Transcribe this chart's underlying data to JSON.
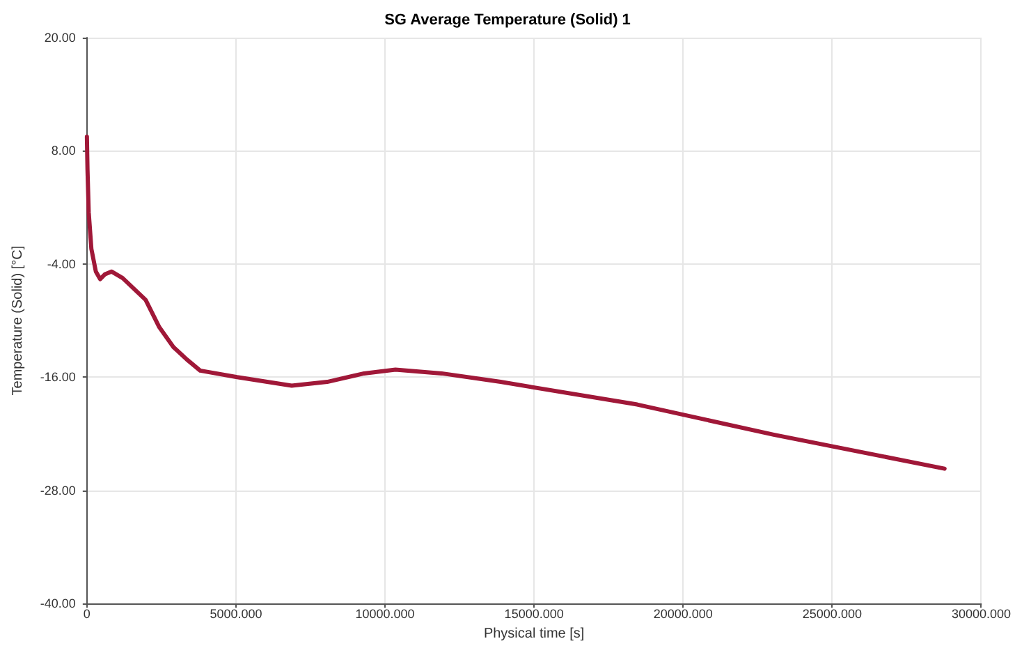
{
  "chart_data": {
    "type": "line",
    "title": "SG Average Temperature (Solid) 1",
    "xlabel": "Physical time [s]",
    "ylabel": "Temperature (Solid) [°C]",
    "series": [
      {
        "color": "#a01838",
        "x": [
          0,
          20,
          60,
          150,
          300,
          444,
          600,
          824,
          1200,
          1970,
          2428,
          2900,
          3344,
          3800,
          5040,
          6870,
          8060,
          9300,
          10350,
          11900,
          13880,
          18460,
          23040,
          28770
        ],
        "values": [
          9.5,
          6,
          1.5,
          -2.4,
          -4.8,
          -5.6,
          -5.1,
          -4.8,
          -5.5,
          -7.8,
          -10.7,
          -12.8,
          -14.1,
          -15.3,
          -16.0,
          -16.9,
          -16.5,
          -15.6,
          -15.2,
          -15.6,
          -16.5,
          -18.9,
          -22.1,
          -25.7
        ]
      }
    ],
    "xlim": [
      0,
      30000
    ],
    "xticks": [
      0,
      {
        "value": 5000,
        "label": "5000.000"
      },
      {
        "value": 10000,
        "label": "10000.000"
      },
      {
        "value": 15000,
        "label": "15000.000"
      },
      {
        "value": 20000,
        "label": "20000.000"
      },
      {
        "value": 25000,
        "label": "25000.000"
      },
      {
        "value": 30000,
        "label": "30000.000"
      }
    ],
    "ylim": [
      -40,
      20
    ],
    "yticks": [
      {
        "value": -40,
        "label": "-40.00"
      },
      {
        "value": -28,
        "label": "-28.00"
      },
      {
        "value": -16,
        "label": "-16.00"
      },
      {
        "value": -4,
        "label": "-4.00"
      },
      {
        "value": 8,
        "label": "8.00"
      },
      {
        "value": 20,
        "label": "20.00"
      }
    ],
    "grid": true,
    "marker": "none",
    "line_style": "solid"
  }
}
